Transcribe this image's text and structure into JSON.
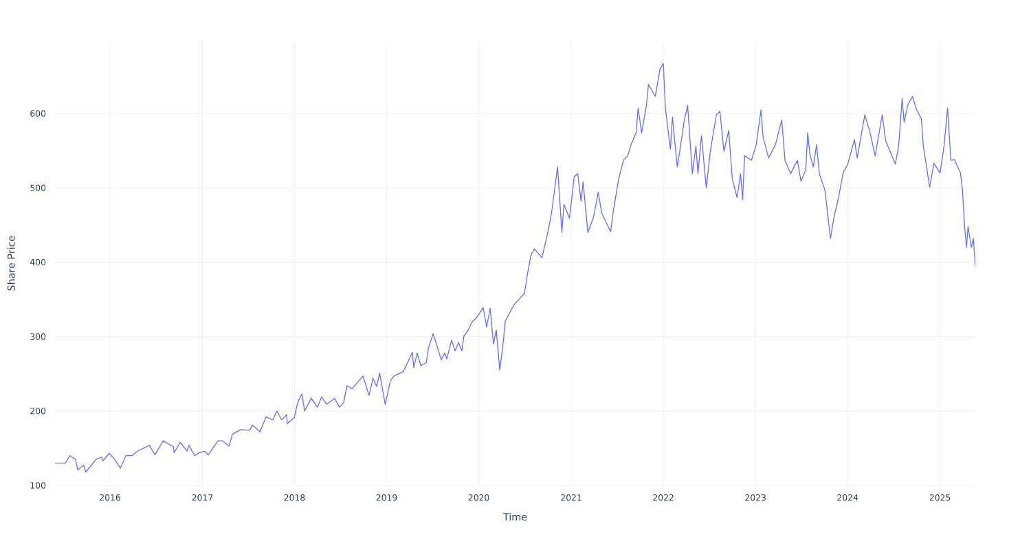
{
  "chart_data": {
    "type": "line",
    "xlabel": "Time",
    "ylabel": "Share Price",
    "grid": true,
    "xlim": [
      "2015-05-28",
      "2025-05-21"
    ],
    "ylim": [
      100,
      697
    ],
    "xticks": [
      "2016",
      "2017",
      "2018",
      "2019",
      "2020",
      "2021",
      "2022",
      "2023",
      "2024",
      "2025"
    ],
    "yticks": [
      100,
      200,
      300,
      400,
      500,
      600
    ],
    "x": [
      "2015-05-28",
      "2015-07-08",
      "2015-07-26",
      "2015-08-17",
      "2015-08-26",
      "2015-09-19",
      "2015-09-27",
      "2015-10-19",
      "2015-11-07",
      "2015-11-29",
      "2015-12-04",
      "2015-12-29",
      "2016-01-20",
      "2016-02-11",
      "2016-03-04",
      "2016-03-28",
      "2016-04-19",
      "2016-06-05",
      "2016-06-27",
      "2016-07-29",
      "2016-09-08",
      "2016-09-11",
      "2016-10-05",
      "2016-11-01",
      "2016-11-09",
      "2016-12-01",
      "2016-12-20",
      "2017-01-11",
      "2017-01-24",
      "2017-03-04",
      "2017-03-21",
      "2017-04-17",
      "2017-04-30",
      "2017-06-02",
      "2017-07-07",
      "2017-07-18",
      "2017-08-17",
      "2017-09-10",
      "2017-10-07",
      "2017-10-23",
      "2017-11-11",
      "2017-12-01",
      "2017-12-03",
      "2017-12-31",
      "2018-01-13",
      "2018-01-30",
      "2018-02-10",
      "2018-03-08",
      "2018-04-02",
      "2018-04-18",
      "2018-05-08",
      "2018-06-09",
      "2018-06-28",
      "2018-07-14",
      "2018-07-28",
      "2018-08-17",
      "2018-09-29",
      "2018-10-23",
      "2018-11-08",
      "2018-11-22",
      "2018-12-04",
      "2018-12-26",
      "2019-01-16",
      "2019-01-30",
      "2019-03-08",
      "2019-04-13",
      "2019-04-18",
      "2019-05-02",
      "2019-05-16",
      "2019-06-07",
      "2019-06-15",
      "2019-07-04",
      "2019-07-17",
      "2019-08-05",
      "2019-08-19",
      "2019-08-27",
      "2019-09-15",
      "2019-09-29",
      "2019-10-13",
      "2019-10-26",
      "2019-11-03",
      "2019-11-17",
      "2019-12-06",
      "2019-12-22",
      "2020-01-18",
      "2020-02-01",
      "2020-02-15",
      "2020-02-28",
      "2020-03-10",
      "2020-03-24",
      "2020-04-06",
      "2020-04-15",
      "2020-05-20",
      "2020-06-13",
      "2020-06-30",
      "2020-07-11",
      "2020-07-25",
      "2020-08-08",
      "2020-09-07",
      "2020-10-01",
      "2020-10-15",
      "2020-11-08",
      "2020-11-25",
      "2020-12-03",
      "2020-12-25",
      "2021-01-13",
      "2021-01-27",
      "2021-02-09",
      "2021-02-17",
      "2021-03-08",
      "2021-03-30",
      "2021-04-18",
      "2021-05-02",
      "2021-06-06",
      "2021-06-17",
      "2021-07-08",
      "2021-07-27",
      "2021-08-13",
      "2021-08-24",
      "2021-09-15",
      "2021-09-23",
      "2021-10-07",
      "2021-10-26",
      "2021-11-03",
      "2021-11-30",
      "2021-12-19",
      "2022-01-01",
      "2022-01-09",
      "2022-01-29",
      "2022-02-06",
      "2022-02-25",
      "2022-03-10",
      "2022-03-24",
      "2022-04-07",
      "2022-04-26",
      "2022-05-10",
      "2022-05-18",
      "2022-06-01",
      "2022-06-20",
      "2022-07-06",
      "2022-07-30",
      "2022-08-13",
      "2022-08-29",
      "2022-09-17",
      "2022-10-01",
      "2022-10-20",
      "2022-11-03",
      "2022-11-11",
      "2022-11-19",
      "2022-12-16",
      "2023-01-04",
      "2023-01-23",
      "2023-01-31",
      "2023-02-22",
      "2023-03-21",
      "2023-04-15",
      "2023-04-28",
      "2023-05-20",
      "2023-06-16",
      "2023-06-30",
      "2023-07-19",
      "2023-07-27",
      "2023-08-04",
      "2023-08-18",
      "2023-08-31",
      "2023-09-11",
      "2023-10-03",
      "2023-10-25",
      "2023-11-07",
      "2023-11-26",
      "2023-12-15",
      "2024-01-01",
      "2024-01-28",
      "2024-02-08",
      "2024-03-09",
      "2024-03-28",
      "2024-04-19",
      "2024-05-17",
      "2024-05-31",
      "2024-07-08",
      "2024-07-21",
      "2024-08-04",
      "2024-08-12",
      "2024-08-26",
      "2024-09-14",
      "2024-09-30",
      "2024-10-19",
      "2024-10-27",
      "2024-11-21",
      "2024-12-08",
      "2025-01-01",
      "2025-01-17",
      "2025-01-31",
      "2025-02-13",
      "2025-02-27",
      "2025-03-23",
      "2025-03-31",
      "2025-04-08",
      "2025-04-16",
      "2025-04-22",
      "2025-05-05",
      "2025-05-13",
      "2025-05-21"
    ],
    "series": [
      {
        "color": "#636efa",
        "values": [
          130,
          130,
          140,
          135,
          121,
          127,
          118,
          127,
          135,
          138,
          133,
          143,
          135,
          123,
          140,
          140,
          146,
          154,
          141,
          160,
          152,
          144,
          158,
          146,
          154,
          140,
          144,
          146,
          141,
          160,
          160,
          153,
          169,
          175,
          174,
          181,
          172,
          192,
          188,
          200,
          188,
          195,
          183,
          191,
          211,
          223,
          200,
          217,
          205,
          219,
          209,
          217,
          205,
          211,
          234,
          230,
          247,
          221,
          244,
          233,
          251,
          209,
          241,
          247,
          253,
          279,
          258,
          278,
          261,
          265,
          284,
          304,
          290,
          269,
          278,
          270,
          295,
          281,
          292,
          281,
          301,
          307,
          320,
          325,
          339,
          313,
          338,
          290,
          309,
          255,
          290,
          321,
          343,
          352,
          358,
          383,
          409,
          418,
          406,
          441,
          466,
          528,
          440,
          478,
          459,
          515,
          519,
          482,
          508,
          440,
          460,
          494,
          466,
          441,
          469,
          512,
          537,
          543,
          556,
          574,
          607,
          574,
          611,
          639,
          623,
          660,
          667,
          607,
          552,
          595,
          528,
          556,
          589,
          611,
          519,
          556,
          519,
          570,
          500,
          549,
          598,
          603,
          549,
          577,
          512,
          487,
          519,
          484,
          543,
          537,
          558,
          605,
          568,
          540,
          558,
          591,
          537,
          519,
          537,
          509,
          524,
          574,
          546,
          528,
          558,
          519,
          497,
          432,
          459,
          487,
          521,
          531,
          565,
          540,
          598,
          577,
          543,
          598,
          563,
          532,
          556,
          620,
          588,
          611,
          623,
          605,
          593,
          556,
          501,
          533,
          520,
          556,
          607,
          537,
          538,
          520,
          497,
          450,
          420,
          448,
          420,
          432,
          394
        ]
      }
    ]
  }
}
